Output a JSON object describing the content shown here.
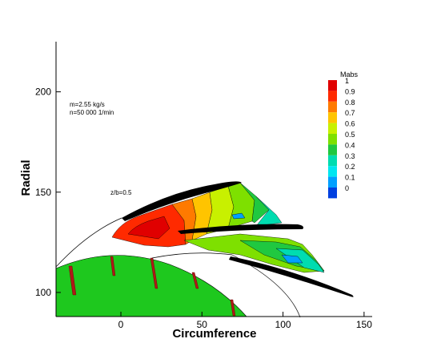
{
  "chart_data": {
    "type": "heatmap",
    "xlabel": "Circumference",
    "ylabel": "Radial",
    "xlim": [
      -40,
      155
    ],
    "ylim": [
      88,
      225
    ],
    "x_ticks": [
      0,
      50,
      100,
      150
    ],
    "y_ticks": [
      100,
      150,
      200
    ],
    "annotations": [
      "m=2.55 kg/s",
      "n=50 000  1/min",
      "z/b=0.5"
    ],
    "legend": {
      "title": "Mabs",
      "placement": "top-right",
      "levels": [
        {
          "label": "1",
          "color": "#e00000"
        },
        {
          "label": "0.9",
          "color": "#ff2a00"
        },
        {
          "label": "0.8",
          "color": "#ff7a00"
        },
        {
          "label": "0.7",
          "color": "#ffc400"
        },
        {
          "label": "0.6",
          "color": "#c8f000"
        },
        {
          "label": "0.5",
          "color": "#7ee000"
        },
        {
          "label": "0.4",
          "color": "#20c840"
        },
        {
          "label": "0.3",
          "color": "#00dcb0"
        },
        {
          "label": "0.2",
          "color": "#00e6f0"
        },
        {
          "label": "0.1",
          "color": "#00a0ff"
        },
        {
          "label": "0",
          "color": "#0040e0"
        }
      ]
    },
    "hub_color": "#1ec81e"
  }
}
